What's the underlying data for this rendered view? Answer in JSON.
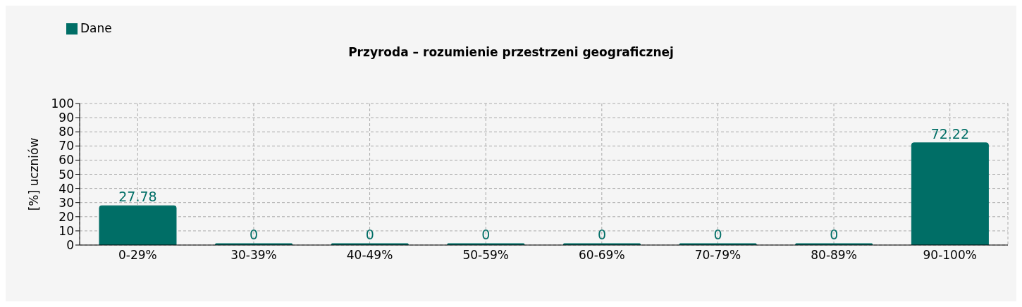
{
  "chart_data": {
    "type": "bar",
    "title": "Przyroda – rozumienie przestrzeni geograficznej",
    "ylabel": "[%] uczniów",
    "categories": [
      "0-29%",
      "30-39%",
      "40-49%",
      "50-59%",
      "60-69%",
      "70-79%",
      "80-89%",
      "90-100%"
    ],
    "series": [
      {
        "name": "Dane",
        "color": "#006e66",
        "values": [
          27.78,
          0,
          0,
          0,
          0,
          0,
          0,
          72.22
        ]
      }
    ],
    "ylim": [
      0,
      100
    ],
    "yticks": [
      0,
      10,
      20,
      30,
      40,
      50,
      60,
      70,
      80,
      90,
      100
    ],
    "grid": true,
    "legend": "top left",
    "data_labels": true
  }
}
